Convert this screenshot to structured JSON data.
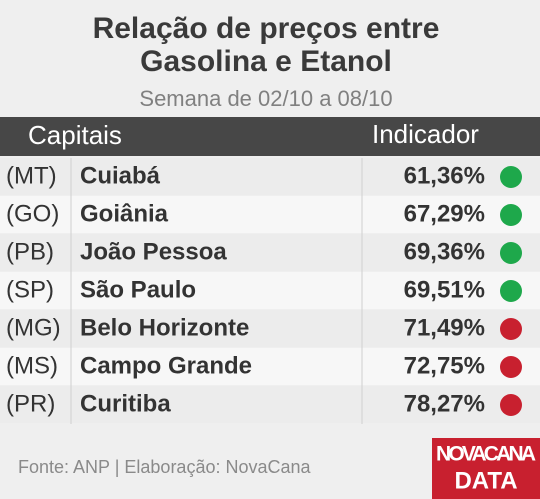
{
  "header": {
    "title": [
      "Relação de preços entre",
      "Gasolina e Etanol"
    ],
    "subtitle": "Semana de 02/10 a 08/10"
  },
  "table": {
    "columns": [
      "Capitais",
      "Indicador"
    ],
    "rows": [
      {
        "state": "(MT)",
        "city": "Cuiabá",
        "indicator": "61,36%",
        "color": "#1ea84b"
      },
      {
        "state": "(GO)",
        "city": "Goiânia",
        "indicator": "67,29%",
        "color": "#1ea84b"
      },
      {
        "state": "(PB)",
        "city": "João Pessoa",
        "indicator": "69,36%",
        "color": "#1ea84b"
      },
      {
        "state": "(SP)",
        "city": "São Paulo",
        "indicator": "69,51%",
        "color": "#1ea84b"
      },
      {
        "state": "(MG)",
        "city": "Belo Horizonte",
        "indicator": "71,49%",
        "color": "#c8202f"
      },
      {
        "state": "(MS)",
        "city": "Campo Grande",
        "indicator": "72,75%",
        "color": "#c8202f"
      },
      {
        "state": "(PR)",
        "city": "Curitiba",
        "indicator": "78,27%",
        "color": "#c8202f"
      }
    ]
  },
  "footer": {
    "source": "Fonte: ANP | Elaboração: NovaCana",
    "logo": [
      "NOVACANA",
      "DATA"
    ]
  }
}
